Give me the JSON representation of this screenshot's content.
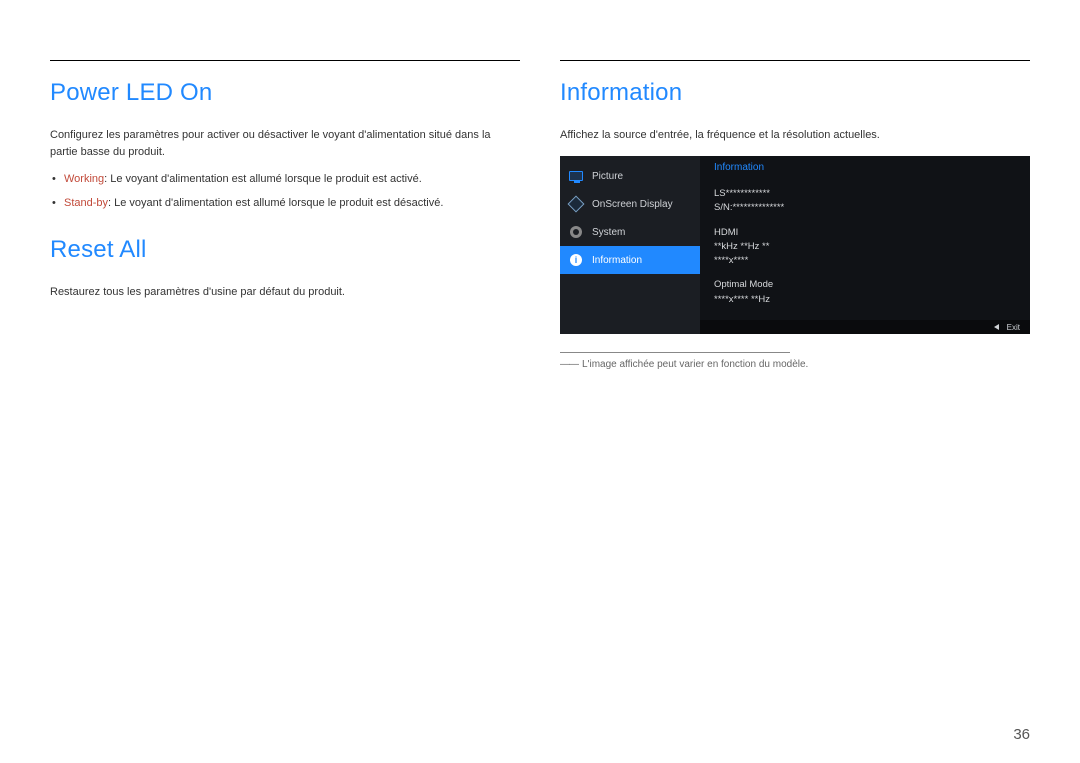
{
  "left": {
    "section1": {
      "title": "Power LED On",
      "intro": "Configurez les paramètres pour activer ou désactiver le voyant d'alimentation situé dans la partie basse du produit.",
      "opts": [
        {
          "kw": "Working",
          "text": ": Le voyant d'alimentation est allumé lorsque le produit est activé."
        },
        {
          "kw": "Stand-by",
          "text": ": Le voyant d'alimentation est allumé lorsque le produit est désactivé."
        }
      ]
    },
    "section2": {
      "title": "Reset All",
      "body": "Restaurez tous les paramètres d'usine par défaut du produit."
    }
  },
  "right": {
    "title": "Information",
    "intro": "Affichez la source d'entrée, la fréquence et la résolution actuelles.",
    "osd": {
      "menu": [
        {
          "label": "Picture",
          "icon": "monitor"
        },
        {
          "label": "OnScreen Display",
          "icon": "onscreen"
        },
        {
          "label": "System",
          "icon": "gear"
        },
        {
          "label": "Information",
          "icon": "info",
          "selected": true
        }
      ],
      "panel_title": "Information",
      "block1_l1": "LS************",
      "block1_l2": "S/N:**************",
      "block2_l1": "HDMI",
      "block2_l2": "**kHz **Hz **",
      "block2_l3": "****x****",
      "block3_l1": "Optimal Mode",
      "block3_l2": "****x**** **Hz",
      "exit": "Exit"
    },
    "footnote": "L'image affichée peut varier en fonction du modèle."
  },
  "page_number": "36",
  "colors": {
    "accent": "#2189ff",
    "kw": "#c24a3a"
  }
}
